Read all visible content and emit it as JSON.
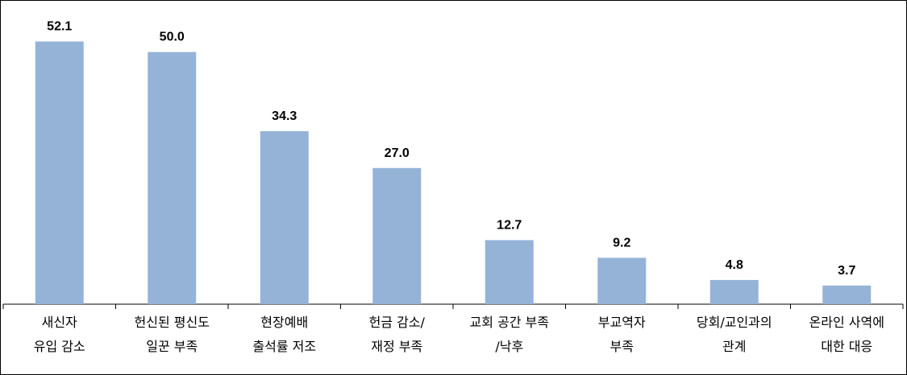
{
  "chart_data": {
    "type": "bar",
    "categories": [
      "새신자\n유입 감소",
      "헌신된 평신도\n일꾼 부족",
      "현장예배\n출석률 저조",
      "헌금 감소/\n재정 부족",
      "교회 공간 부족\n/낙후",
      "부교역자\n부족",
      "당회/교인과의\n관계",
      "온라인 사역에\n대한 대응"
    ],
    "values": [
      52.1,
      50.0,
      34.3,
      27.0,
      12.7,
      9.2,
      4.8,
      3.7
    ],
    "value_labels": [
      "52.1",
      "50.0",
      "34.3",
      "27.0",
      "12.7",
      "9.2",
      "4.8",
      "3.7"
    ],
    "color": "#95b3d7",
    "ylim": [
      0,
      60
    ]
  }
}
